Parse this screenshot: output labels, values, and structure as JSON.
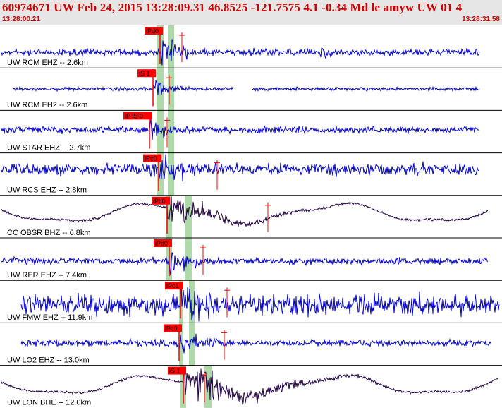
{
  "header": {
    "title": "60974671 UW Feb 24, 2015 13:28:09.31   46.8525 -121.7575  4.1 -0.34 Md le amyw UW 01   4",
    "start_time": "13:28:00.21",
    "end_time": "13:28:31.58"
  },
  "colors": {
    "trace_blue": "#0000cc",
    "trace_dark": "#220044",
    "pick_red": "#ff0000",
    "window_green": "#aed9a8",
    "header_bg": "#e6e6e6",
    "header_text": "#cc0000"
  },
  "traces": [
    {
      "label": "UW RCM EHZ -- 2.6km",
      "pick": "iPd0",
      "style": "blue",
      "amplitude": "medium",
      "gap": false
    },
    {
      "label": "UW RCM EH2 -- 2.6km",
      "pick": "iS 1",
      "style": "blue",
      "amplitude": "low",
      "gap": true
    },
    {
      "label": "UW STAR EHZ -- 2.7km",
      "pick": "iP iS 0",
      "style": "blue",
      "amplitude": "medium",
      "gap": false
    },
    {
      "label": "UW RCS EHZ -- 2.8km",
      "pick": "iPc0",
      "style": "blue",
      "amplitude": "high",
      "gap": false
    },
    {
      "label": "CC OBSR BHZ -- 6.8km",
      "pick": "iPc0",
      "style": "dark",
      "amplitude": "long-period",
      "gap": false
    },
    {
      "label": "UW RER EHZ -- 7.4km",
      "pick": "iPd0",
      "style": "blue",
      "amplitude": "medium",
      "gap": false
    },
    {
      "label": "UW FMW EHZ -- 11.9km",
      "pick": "iPc1",
      "style": "blue",
      "amplitude": "very-high",
      "gap": false
    },
    {
      "label": "UW LO2 EHZ -- 13.0km",
      "pick": "iPc0",
      "style": "blue",
      "amplitude": "medium",
      "gap": false
    },
    {
      "label": "UW LON BHE -- 12.0km",
      "pick": "iS 1",
      "style": "dark",
      "amplitude": "long-period",
      "gap": false
    }
  ]
}
